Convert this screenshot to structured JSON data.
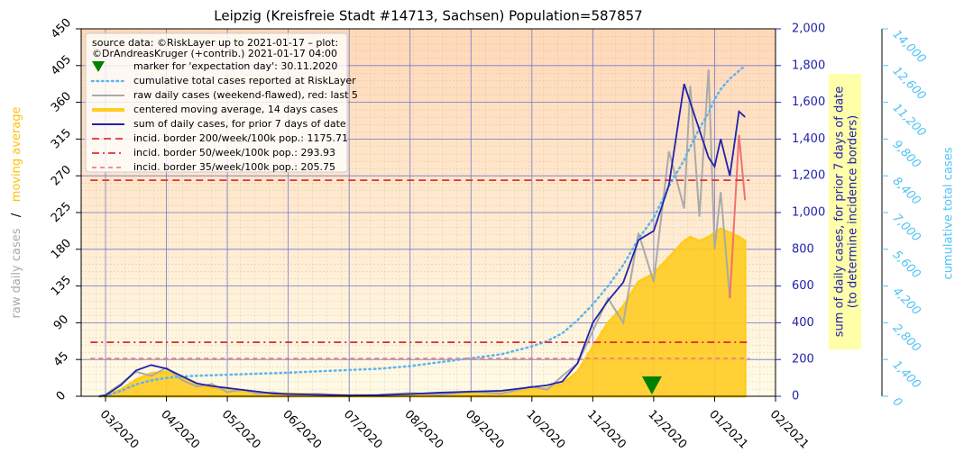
{
  "chart_data": {
    "type": "line",
    "title": "Leipzig (Kreisfreie Stadt #14713, Sachsen) Population=587857",
    "legend_title": [
      "source data: ©RiskLayer up to 2021-01-17 – plot:",
      "©DrAndreasKruger (+contrib.) 2021-01-17 04:00"
    ],
    "x": [
      0.9,
      1.0,
      1.25,
      1.5,
      1.75,
      2.0,
      2.25,
      2.5,
      2.75,
      3.0,
      3.25,
      3.5,
      3.75,
      4.0,
      4.5,
      5.0,
      5.5,
      6.0,
      6.5,
      7.0,
      7.5,
      8.0,
      8.25,
      8.5,
      8.75,
      9.0,
      9.25,
      9.5,
      9.75,
      10.0,
      10.25,
      10.5,
      10.6,
      10.75,
      10.9,
      11.0,
      11.1,
      11.25,
      11.4,
      11.5
    ],
    "xlim": [
      0.6,
      12
    ],
    "xticks": [
      {
        "value": 1,
        "label": "03/2020"
      },
      {
        "value": 2,
        "label": "04/2020"
      },
      {
        "value": 3,
        "label": "05/2020"
      },
      {
        "value": 4,
        "label": "06/2020"
      },
      {
        "value": 5,
        "label": "07/2020"
      },
      {
        "value": 6,
        "label": "08/2020"
      },
      {
        "value": 7,
        "label": "09/2020"
      },
      {
        "value": 8,
        "label": "10/2020"
      },
      {
        "value": 9,
        "label": "11/2020"
      },
      {
        "value": 10,
        "label": "12/2020"
      },
      {
        "value": 11,
        "label": "01/2021"
      },
      {
        "value": 12,
        "label": "02/2021"
      }
    ],
    "ylim": [
      0,
      450
    ],
    "yticks": [
      0,
      45,
      90,
      135,
      180,
      225,
      270,
      315,
      360,
      405,
      450
    ],
    "y2lim": [
      0,
      2000
    ],
    "y2ticks": [
      0,
      200,
      400,
      600,
      800,
      {
        "value": 1000,
        "label": "1,000"
      },
      {
        "value": 1200,
        "label": "1,200"
      },
      {
        "value": 1400,
        "label": "1,400"
      },
      {
        "value": 1600,
        "label": "1,600"
      },
      {
        "value": 1800,
        "label": "1,800"
      },
      {
        "value": 2000,
        "label": "2,000"
      }
    ],
    "y3lim": [
      0,
      14000
    ],
    "y3ticks": [
      0,
      {
        "value": 1400,
        "label": "1,400"
      },
      {
        "value": 2800,
        "label": "2,800"
      },
      {
        "value": 4200,
        "label": "4,200"
      },
      {
        "value": 5600,
        "label": "5,600"
      },
      {
        "value": 7000,
        "label": "7,000"
      },
      {
        "value": 8400,
        "label": "8,400"
      },
      {
        "value": 9800,
        "label": "9,800"
      },
      {
        "value": 11200,
        "label": "11,200"
      },
      {
        "value": 12600,
        "label": "12,600"
      },
      {
        "value": 14000,
        "label": "14,000"
      }
    ],
    "ylabel": [
      {
        "text": "raw daily cases",
        "color": "#aaaaaa"
      },
      {
        "text": "/",
        "color": "#000000"
      },
      {
        "text": "moving average",
        "color": "#ffc107"
      }
    ],
    "y2label": [
      "sum of daily cases, for prior 7 days of date",
      "(to determine incidence borders)"
    ],
    "y3label": "cumulative total cases",
    "grid": true,
    "marker": {
      "name": "marker for 'expectation day': 30.11.2020",
      "x": 9.97,
      "y": 0,
      "color": "#008000"
    },
    "series": [
      {
        "name": "cumulative total cases reported at RiskLayer",
        "style": "dotted",
        "axis": "y3",
        "color": "#5ab4f0",
        "values": [
          0,
          20,
          200,
          450,
          600,
          700,
          750,
          780,
          800,
          820,
          840,
          860,
          880,
          900,
          950,
          1000,
          1050,
          1150,
          1300,
          1450,
          1600,
          1900,
          2100,
          2400,
          2900,
          3500,
          4200,
          5000,
          6000,
          6800,
          8000,
          9000,
          9500,
          10200,
          10800,
          11300,
          11700,
          12100,
          12400,
          12600
        ]
      },
      {
        "name": "raw daily cases (weekend-flawed), red: last 5",
        "style": "line",
        "axis": "y",
        "color": "#aaaaaa",
        "highlight_color": "#f07070",
        "highlight_last_days": 5,
        "values": [
          0,
          2,
          15,
          30,
          25,
          35,
          20,
          12,
          15,
          5,
          8,
          3,
          5,
          2,
          3,
          0,
          2,
          4,
          2,
          6,
          3,
          12,
          8,
          25,
          40,
          80,
          120,
          90,
          200,
          140,
          300,
          230,
          380,
          220,
          400,
          180,
          250,
          120,
          320,
          240
        ]
      },
      {
        "name": "centered moving average, 14 days cases",
        "style": "area",
        "axis": "y",
        "color": "#ffcc22",
        "values": [
          0,
          1,
          8,
          20,
          28,
          30,
          22,
          14,
          10,
          8,
          6,
          5,
          3,
          3,
          2,
          1,
          1,
          2,
          3,
          4,
          5,
          8,
          10,
          15,
          30,
          60,
          90,
          110,
          140,
          150,
          170,
          190,
          195,
          190,
          195,
          200,
          205,
          200,
          195,
          190
        ]
      },
      {
        "name": "sum of daily cases, for prior 7 days of date",
        "style": "line",
        "axis": "y2",
        "color": "#2222aa",
        "values": [
          0,
          5,
          60,
          140,
          170,
          150,
          110,
          70,
          55,
          45,
          35,
          25,
          15,
          12,
          8,
          5,
          6,
          12,
          20,
          25,
          30,
          50,
          60,
          80,
          180,
          400,
          520,
          620,
          850,
          900,
          1150,
          1700,
          1600,
          1450,
          1300,
          1250,
          1400,
          1200,
          1550,
          1520
        ]
      }
    ],
    "hlines": [
      {
        "name": "incid. border 200/week/100k pop.: 1175.71",
        "value": 1175.71,
        "color": "#dd3333",
        "dash": "8 5"
      },
      {
        "name": "incid. border 50/week/100k pop.: 293.93",
        "value": 293.93,
        "color": "#dd3333",
        "dash": "8 4 2 4"
      },
      {
        "name": "incid. border 35/week/100k pop.: 205.75",
        "value": 205.75,
        "color": "#f08080",
        "dash": "5 4"
      }
    ]
  }
}
